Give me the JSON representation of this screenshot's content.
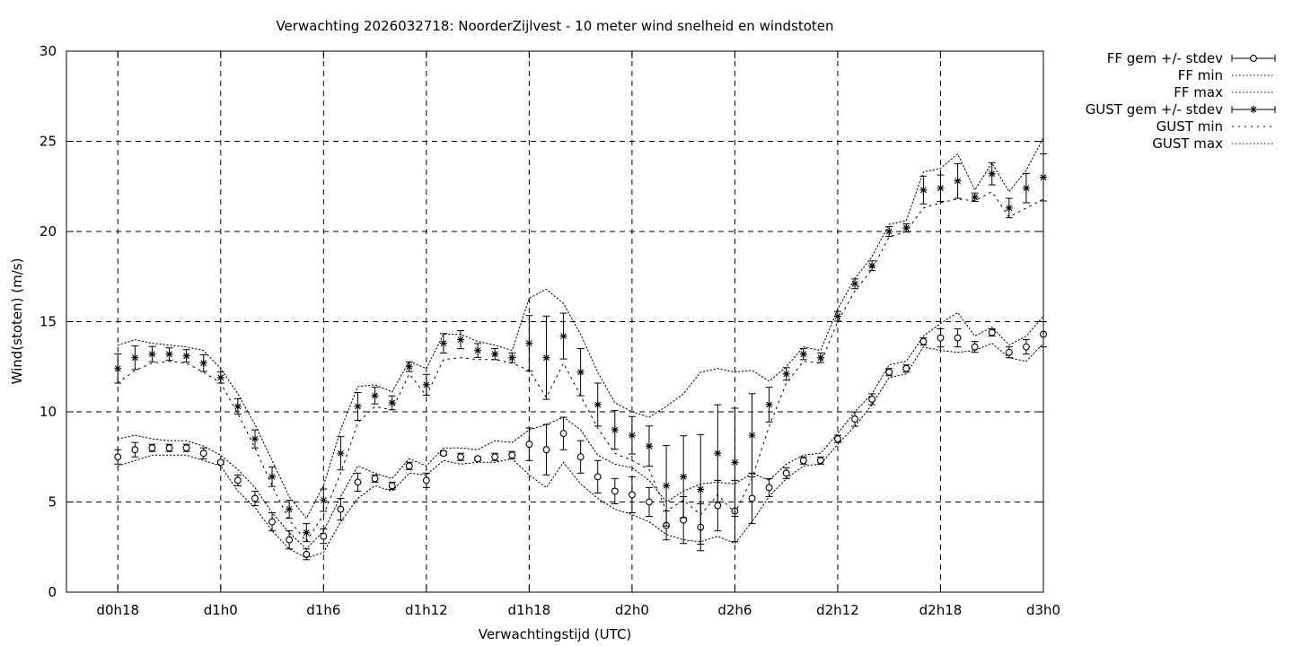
{
  "chart_data": {
    "type": "line",
    "title": "Verwachting 2026032718: NoorderZijlvest - 10 meter wind snelheid en windstoten",
    "xlabel": "Verwachtingstijd (UTC)",
    "ylabel": "Wind(stoten) (m/s)",
    "ylim": [
      0,
      30
    ],
    "xlim": [
      15,
      72
    ],
    "yticks": [
      "0",
      "5",
      "10",
      "15",
      "20",
      "25",
      "30"
    ],
    "xticks": [
      {
        "x": 18,
        "label": "d0h18"
      },
      {
        "x": 24,
        "label": "d1h0"
      },
      {
        "x": 30,
        "label": "d1h6"
      },
      {
        "x": 36,
        "label": "d1h12"
      },
      {
        "x": 42,
        "label": "d1h18"
      },
      {
        "x": 48,
        "label": "d2h0"
      },
      {
        "x": 54,
        "label": "d2h6"
      },
      {
        "x": 60,
        "label": "d2h12"
      },
      {
        "x": 66,
        "label": "d2h18"
      },
      {
        "x": 72,
        "label": "d3h0"
      }
    ],
    "grid": true,
    "legend_position": "outside-top-right",
    "x": [
      18,
      19,
      20,
      21,
      22,
      23,
      24,
      25,
      26,
      27,
      28,
      29,
      30,
      31,
      32,
      33,
      34,
      35,
      36,
      37,
      38,
      39,
      40,
      41,
      42,
      43,
      44,
      45,
      46,
      47,
      48,
      49,
      50,
      51,
      52,
      53,
      54,
      55,
      56,
      57,
      58,
      59,
      60,
      61,
      62,
      63,
      64,
      65,
      66,
      67,
      68,
      69,
      70,
      71,
      72
    ],
    "series": [
      {
        "name": "FF gem +/- stdev",
        "marker": "circle",
        "values": [
          7.5,
          7.9,
          8.0,
          8.0,
          8.0,
          7.7,
          7.2,
          6.2,
          5.2,
          3.9,
          2.9,
          2.1,
          3.1,
          4.6,
          6.1,
          6.3,
          5.9,
          7.0,
          6.2,
          7.7,
          7.5,
          7.4,
          7.5,
          7.6,
          8.2,
          7.9,
          8.8,
          7.5,
          6.4,
          5.6,
          5.4,
          5.0,
          3.7,
          4.0,
          3.6,
          4.8,
          4.5,
          5.2,
          5.8,
          6.6,
          7.3,
          7.3,
          8.5,
          9.6,
          10.7,
          12.2,
          12.4,
          13.9,
          14.1,
          14.1,
          13.6,
          14.4,
          13.3,
          13.6,
          14.3
        ],
        "stdev": [
          0.4,
          0.4,
          0.2,
          0.2,
          0.2,
          0.3,
          0.1,
          0.3,
          0.4,
          0.5,
          0.5,
          0.3,
          0.4,
          0.6,
          0.5,
          0.2,
          0.2,
          0.2,
          0.4,
          0.1,
          0.2,
          0.1,
          0.2,
          0.2,
          0.9,
          1.4,
          0.9,
          0.9,
          0.9,
          0.7,
          1.0,
          0.8,
          0.8,
          1.3,
          1.3,
          1.4,
          1.7,
          1.4,
          0.5,
          0.3,
          0.2,
          0.2,
          0.2,
          0.4,
          0.3,
          0.2,
          0.2,
          0.2,
          0.5,
          0.5,
          0.3,
          0.2,
          0.3,
          0.4,
          0.7
        ]
      },
      {
        "name": "FF min",
        "style": "dotted",
        "values": [
          7.0,
          7.3,
          7.6,
          7.6,
          7.6,
          7.3,
          7.0,
          5.6,
          4.7,
          3.4,
          2.4,
          1.9,
          2.2,
          3.9,
          5.2,
          5.9,
          5.6,
          6.6,
          6.5,
          7.3,
          7.1,
          7.2,
          7.2,
          7.4,
          6.5,
          5.8,
          7.2,
          6.0,
          5.2,
          4.6,
          4.3,
          3.9,
          3.2,
          2.9,
          2.8,
          3.1,
          2.7,
          3.9,
          5.3,
          6.3,
          7.0,
          7.1,
          8.2,
          9.2,
          10.4,
          11.9,
          12.1,
          13.6,
          13.4,
          13.3,
          13.4,
          13.8,
          13.0,
          12.8,
          13.8
        ]
      },
      {
        "name": "FF max",
        "style": "dotted",
        "values": [
          8.5,
          8.7,
          8.5,
          8.4,
          8.4,
          8.1,
          7.6,
          6.8,
          5.8,
          4.4,
          3.3,
          2.4,
          3.4,
          5.3,
          7.0,
          6.6,
          6.3,
          7.4,
          7.0,
          8.0,
          8.0,
          7.9,
          8.4,
          8.3,
          9.0,
          9.3,
          9.7,
          9.0,
          7.6,
          7.1,
          6.9,
          6.2,
          5.0,
          5.6,
          6.0,
          6.1,
          6.0,
          6.6,
          6.2,
          7.1,
          7.6,
          7.7,
          8.8,
          10.0,
          11.0,
          12.6,
          12.8,
          14.2,
          14.9,
          15.5,
          14.2,
          14.7,
          13.7,
          14.2,
          15.3
        ]
      },
      {
        "name": "GUST gem +/- stdev",
        "marker": "star",
        "values": [
          12.4,
          13.0,
          13.2,
          13.2,
          13.1,
          12.7,
          11.9,
          10.3,
          8.5,
          6.4,
          4.6,
          3.3,
          5.1,
          7.7,
          10.3,
          10.9,
          10.5,
          12.5,
          11.5,
          13.8,
          14.0,
          13.4,
          13.2,
          13.0,
          13.8,
          13.0,
          14.2,
          12.2,
          10.4,
          9.0,
          8.7,
          8.1,
          5.9,
          6.4,
          5.7,
          7.7,
          7.2,
          8.7,
          10.4,
          12.1,
          13.2,
          13.0,
          15.3,
          17.1,
          18.1,
          20.0,
          20.2,
          22.3,
          22.4,
          22.8,
          21.9,
          23.2,
          21.3,
          22.4,
          23.0
        ]
      },
      {
        "name": "GUST min",
        "style": "dotted",
        "values": [
          11.6,
          12.3,
          12.7,
          12.8,
          12.7,
          12.2,
          11.6,
          9.9,
          8.0,
          5.9,
          4.0,
          2.8,
          4.3,
          6.6,
          9.4,
          10.3,
          10.1,
          12.1,
          10.9,
          12.9,
          13.0,
          12.9,
          12.9,
          12.7,
          12.3,
          10.8,
          12.7,
          10.9,
          9.1,
          7.7,
          7.3,
          6.8,
          4.5,
          5.1,
          4.3,
          5.4,
          4.4,
          6.3,
          9.2,
          11.6,
          12.8,
          12.7,
          15.0,
          16.7,
          17.9,
          19.7,
          20.0,
          21.3,
          21.6,
          21.8,
          21.7,
          22.2,
          20.8,
          21.3,
          21.8
        ]
      },
      {
        "name": "GUST max",
        "style": "dotted",
        "values": [
          13.7,
          14.0,
          13.8,
          13.7,
          13.6,
          13.4,
          12.4,
          11.0,
          9.3,
          7.3,
          5.3,
          4.1,
          5.9,
          9.0,
          11.4,
          11.5,
          11.1,
          12.8,
          12.4,
          14.3,
          14.3,
          13.9,
          13.7,
          13.4,
          16.3,
          16.8,
          16.0,
          14.3,
          12.2,
          10.5,
          10.0,
          9.7,
          10.3,
          11.0,
          12.2,
          12.4,
          12.2,
          12.3,
          11.7,
          12.5,
          13.6,
          13.4,
          15.7,
          17.4,
          18.6,
          20.4,
          20.6,
          23.3,
          23.5,
          24.3,
          22.3,
          23.8,
          22.2,
          23.4,
          25.2
        ]
      }
    ]
  }
}
